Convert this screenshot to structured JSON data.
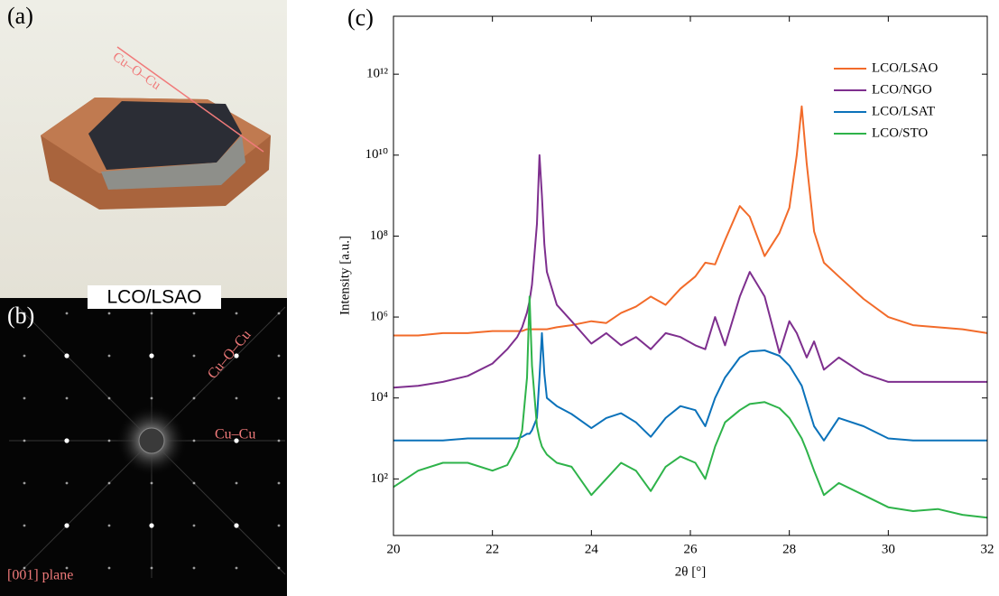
{
  "panels": {
    "a": {
      "label": "(a)",
      "annotation": "Cu–O–Cu"
    },
    "b": {
      "label": "(b)",
      "caption": "LCO/LSAO",
      "annotation_diagonal": "Cu–O–Cu",
      "annotation_axis": "Cu–Cu",
      "plane": "[001] plane"
    },
    "c": {
      "label": "(c)"
    }
  },
  "chart_data": {
    "type": "line",
    "xlabel": "2θ [°]",
    "ylabel": "Intensity [a.u.]",
    "yscale": "log",
    "legend": "northeast",
    "box": true,
    "xlim": [
      20,
      32
    ],
    "xticks": [
      20,
      22,
      24,
      26,
      28,
      30,
      32
    ],
    "ylim": [
      4,
      27000000000000
    ],
    "yticks": [
      {
        "value": 100,
        "label": "10²"
      },
      {
        "value": 10000,
        "label": "10⁴"
      },
      {
        "value": 1000000,
        "label": "10⁶"
      },
      {
        "value": 100000000,
        "label": "10⁸"
      },
      {
        "value": 10000000000,
        "label": "10¹⁰"
      },
      {
        "value": 1000000000000,
        "label": "10¹²"
      }
    ],
    "x": [
      20,
      20.5,
      21,
      21.5,
      22,
      22.3,
      22.5,
      22.6,
      22.7,
      22.75,
      22.8,
      22.9,
      22.95,
      23.0,
      23.05,
      23.1,
      23.3,
      23.6,
      24,
      24.3,
      24.6,
      24.9,
      25.2,
      25.5,
      25.8,
      26.1,
      26.3,
      26.5,
      26.7,
      27.0,
      27.2,
      27.5,
      27.8,
      28.0,
      28.15,
      28.25,
      28.35,
      28.5,
      28.7,
      29,
      29.5,
      30,
      30.5,
      31,
      31.5,
      32
    ],
    "series": [
      {
        "name": "LCO/LSAO",
        "color": "#f26b2a",
        "values": [
          350000,
          350000,
          400000,
          400000,
          450000,
          450000,
          450000,
          450000,
          500000,
          500000,
          500000,
          500000,
          500000,
          500000,
          500000,
          500000,
          560000,
          630000,
          790000,
          710000,
          1260000,
          1800000,
          3200000,
          2000000,
          5000000,
          10000000,
          22000000,
          20000000,
          79000000,
          550000000,
          300000000,
          32000000,
          120000000,
          500000000,
          10000000000,
          160000000000,
          6300000000,
          130000000,
          22000000,
          10000000,
          2800000,
          1000000,
          630000,
          560000,
          500000,
          400000
        ]
      },
      {
        "name": "LCO/NGO",
        "color": "#7e2f8e",
        "values": [
          18000,
          20000,
          25000,
          35000,
          71000,
          160000,
          320000,
          560000,
          1300000,
          2500000,
          6300000,
          200000000,
          10000000000,
          1000000000,
          63000000,
          13000000,
          2000000,
          790000,
          220000,
          400000,
          200000,
          320000,
          160000,
          400000,
          320000,
          200000,
          160000,
          1000000,
          200000,
          3200000,
          13000000,
          3200000,
          130000,
          790000,
          400000,
          200000,
          100000,
          250000,
          50000,
          100000,
          40000,
          25000,
          25000,
          25000,
          25000,
          25000
        ]
      },
      {
        "name": "LCO/LSAT",
        "color": "#0b72ba",
        "values": [
          890,
          890,
          890,
          1000,
          1000,
          1000,
          1000,
          1100,
          1300,
          1300,
          1600,
          3200,
          32000,
          400000,
          40000,
          10000,
          6300,
          4000,
          1800,
          3200,
          4200,
          2500,
          1100,
          3200,
          6300,
          5000,
          2000,
          10000,
          32000,
          100000,
          140000,
          150000,
          110000,
          63000,
          32000,
          20000,
          7900,
          2000,
          890,
          3200,
          2000,
          1000,
          890,
          890,
          890,
          890
        ]
      },
      {
        "name": "LCO/STO",
        "color": "#2eb34a",
        "values": [
          63,
          160,
          250,
          250,
          160,
          220,
          630,
          1600,
          32000,
          3200000,
          63000,
          2000,
          1000,
          630,
          500,
          400,
          250,
          200,
          40,
          100,
          250,
          160,
          50,
          200,
          360,
          250,
          100,
          630,
          2500,
          5000,
          7100,
          7900,
          5600,
          3200,
          1600,
          1000,
          500,
          160,
          40,
          79,
          40,
          20,
          16,
          18,
          13,
          11
        ]
      }
    ]
  }
}
